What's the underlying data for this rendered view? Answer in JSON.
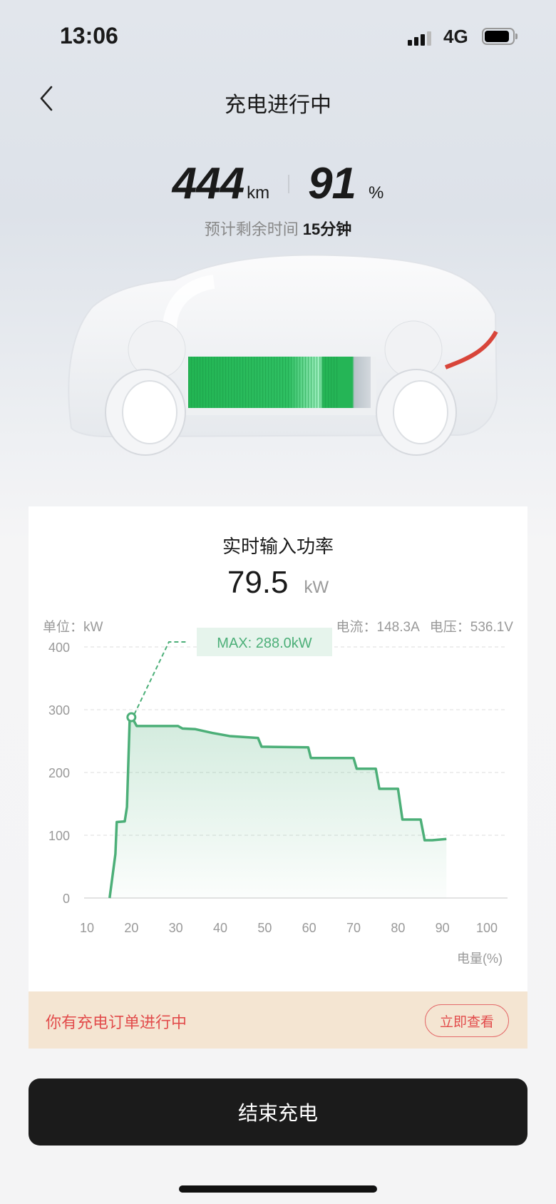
{
  "status_bar": {
    "time": "13:06",
    "network": "4G",
    "signal_bars": 3,
    "battery_level": 0.9
  },
  "nav": {
    "title": "充电进行中",
    "back_icon": "chevron-left-icon"
  },
  "summary": {
    "range_value": "444",
    "range_unit": "km",
    "soc_value": "91",
    "soc_unit": "%",
    "eta_label": "预计剩余时间",
    "eta_value": "15分钟"
  },
  "power_card": {
    "title": "实时输入功率",
    "value": "79.5",
    "unit": "kW",
    "unit_label": "单位：kW",
    "current_label": "电流：148.3A",
    "voltage_label": "电压：536.1V"
  },
  "chart_data": {
    "type": "area",
    "xlabel": "电量(%)",
    "ylabel": "",
    "xlim": [
      10,
      100
    ],
    "ylim": [
      0,
      400
    ],
    "x_ticks": [
      "10",
      "20",
      "30",
      "40",
      "50",
      "60",
      "70",
      "80",
      "90",
      "100"
    ],
    "y_ticks": [
      "0",
      "100",
      "200",
      "300",
      "400"
    ],
    "grid": true,
    "line_color": "#4caf78",
    "annotation": "MAX: 288.0kW",
    "max_point": {
      "x": 20,
      "y": 288
    },
    "points": [
      [
        15.1,
        0
      ],
      [
        16.4,
        70
      ],
      [
        16.7,
        121
      ],
      [
        18.5,
        122
      ],
      [
        19,
        145
      ],
      [
        19.6,
        281
      ],
      [
        20.1,
        288
      ],
      [
        21.2,
        274
      ],
      [
        30.5,
        274
      ],
      [
        31.5,
        270
      ],
      [
        34.4,
        269
      ],
      [
        38.2,
        263
      ],
      [
        42.1,
        258
      ],
      [
        48.5,
        255
      ],
      [
        49.3,
        241
      ],
      [
        59.8,
        240
      ],
      [
        60.4,
        223
      ],
      [
        70,
        223
      ],
      [
        70.7,
        206
      ],
      [
        75,
        206
      ],
      [
        75.8,
        174
      ],
      [
        80,
        174
      ],
      [
        81,
        125
      ],
      [
        85.1,
        125
      ],
      [
        86,
        92
      ],
      [
        87.7,
        92
      ],
      [
        90.9,
        94
      ]
    ]
  },
  "banner": {
    "text": "你有充电订单进行中",
    "button": "立即查看"
  },
  "end_button": "结束充电"
}
